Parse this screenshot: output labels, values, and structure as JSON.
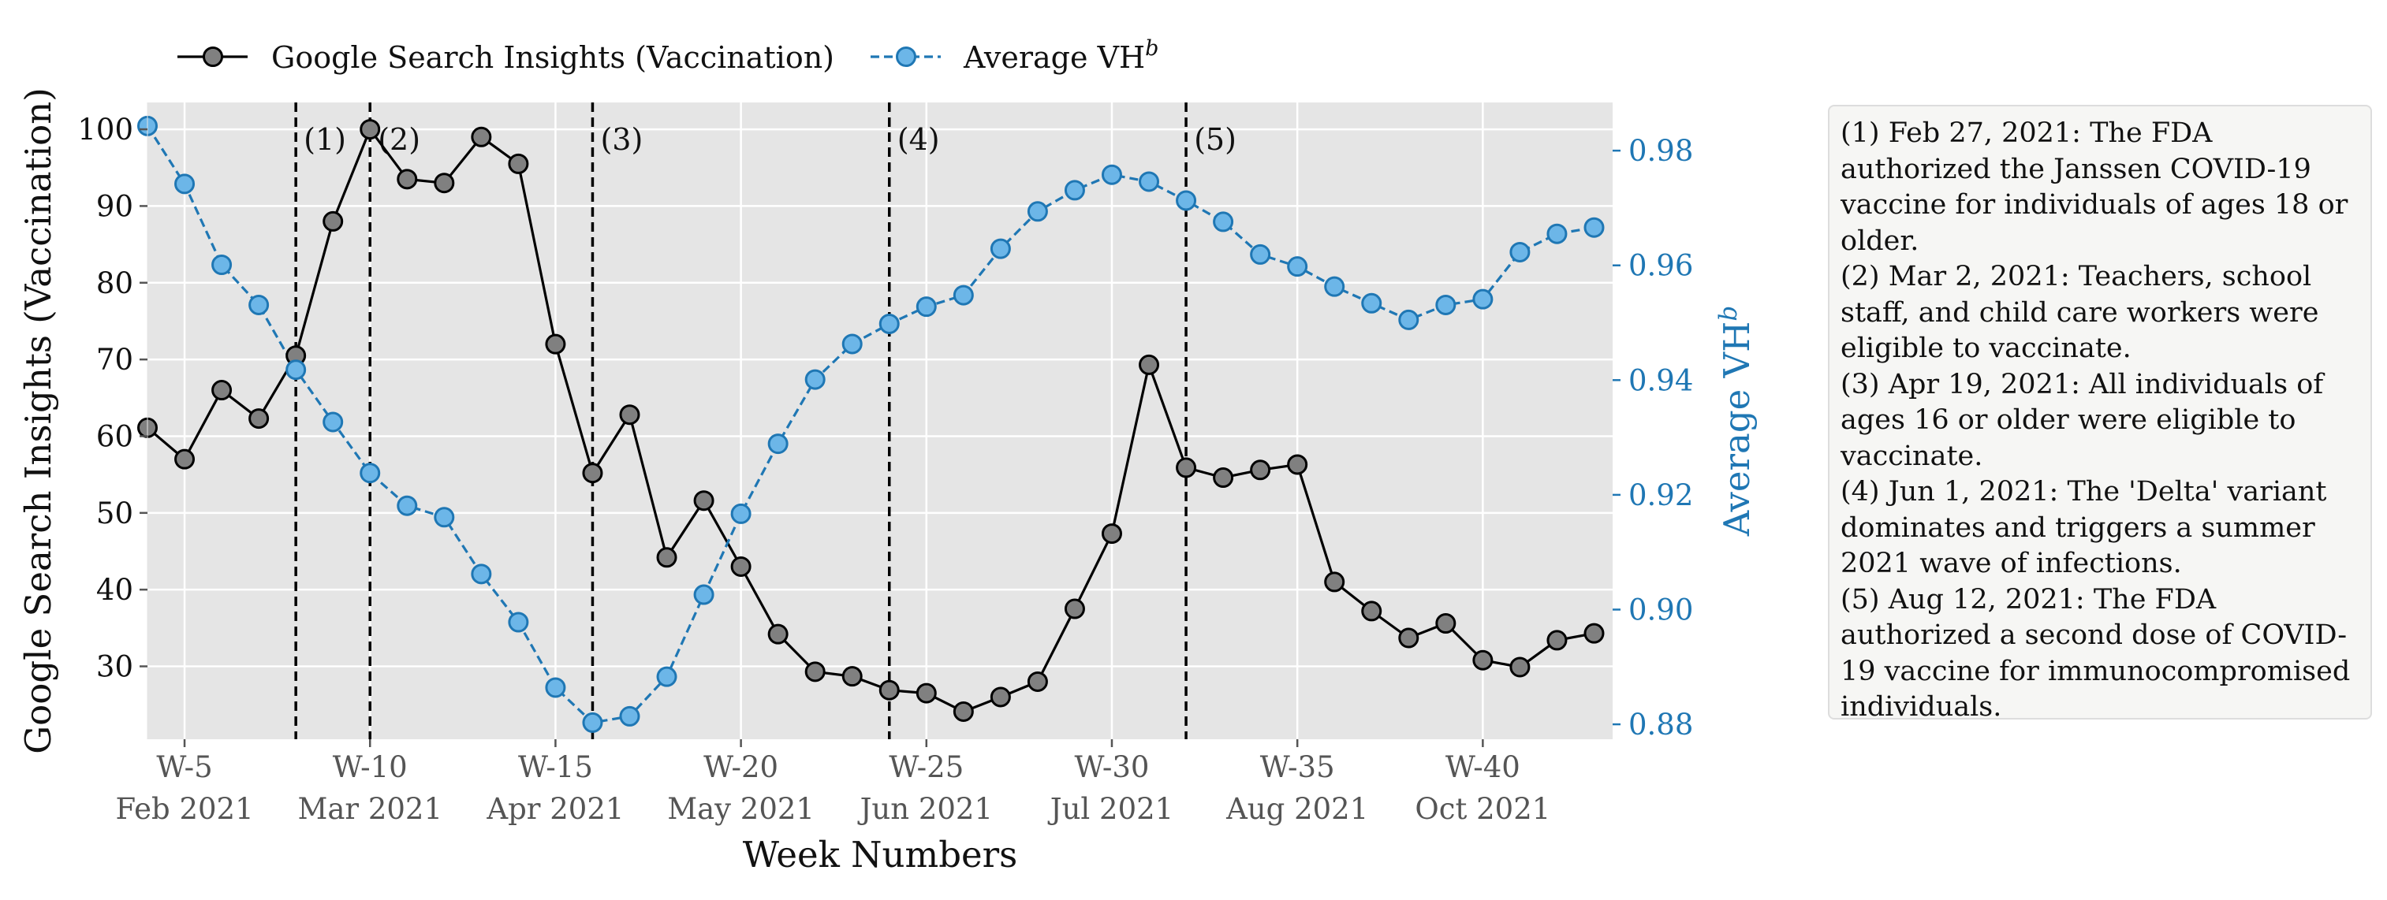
{
  "chart_data": {
    "type": "line",
    "xlabel": "Week Numbers",
    "ylabel_left": "Google Search Insights (Vaccination)",
    "ylabel_right": "Average VH",
    "ylabel_right_superscript": "b",
    "xlim": [
      4,
      43.5
    ],
    "ylim_left": [
      20.5,
      103.5
    ],
    "ylim_right": [
      0.8774,
      0.9884
    ],
    "grid": true,
    "legend_placement": "top-left, outside plot",
    "x_ticks": [
      {
        "week": 5,
        "label": "W-5",
        "sublabel": "Feb 2021"
      },
      {
        "week": 10,
        "label": "W-10",
        "sublabel": "Mar 2021"
      },
      {
        "week": 15,
        "label": "W-15",
        "sublabel": "Apr 2021"
      },
      {
        "week": 20,
        "label": "W-20",
        "sublabel": "May 2021"
      },
      {
        "week": 25,
        "label": "W-25",
        "sublabel": "Jun 2021"
      },
      {
        "week": 30,
        "label": "W-30",
        "sublabel": "Jul 2021"
      },
      {
        "week": 35,
        "label": "W-35",
        "sublabel": "Aug 2021"
      },
      {
        "week": 40,
        "label": "W-40",
        "sublabel": "Oct 2021"
      }
    ],
    "y_ticks_left": [
      30,
      40,
      50,
      60,
      70,
      80,
      90,
      100
    ],
    "y_ticks_right": [
      0.88,
      0.9,
      0.92,
      0.94,
      0.96,
      0.98
    ],
    "y_ticks_right_labels": [
      "0.88",
      "0.90",
      "0.92",
      "0.94",
      "0.96",
      "0.98"
    ],
    "series": [
      {
        "name": "Google Search Insights (Vaccination)",
        "axis": "left",
        "color": "#000000",
        "marker_color": "#808080",
        "line_style": "solid",
        "x": [
          4,
          5,
          6,
          7,
          8,
          9,
          10,
          11,
          12,
          13,
          14,
          15,
          16,
          17,
          18,
          19,
          20,
          21,
          22,
          23,
          24,
          25,
          26,
          27,
          28,
          29,
          30,
          31,
          32,
          33,
          34,
          35,
          36,
          37,
          38,
          39,
          40,
          41,
          42,
          43
        ],
        "values": [
          61.1,
          57,
          66,
          62.3,
          70.5,
          88,
          100,
          93.5,
          93,
          99,
          95.5,
          72,
          55.2,
          62.8,
          44.2,
          51.6,
          43,
          34.2,
          29.3,
          28.7,
          26.9,
          26.5,
          24.1,
          26,
          28,
          37.5,
          47.3,
          69.3,
          55.9,
          54.6,
          55.6,
          56.3,
          41,
          37.2,
          33.7,
          35.6,
          30.8,
          29.9,
          33.4,
          34.3
        ]
      },
      {
        "name": "Average VH",
        "name_superscript": "b",
        "axis": "right",
        "color": "#1f77b4",
        "marker_color": "#6cb6e8",
        "line_style": "dashed",
        "x": [
          4,
          5,
          6,
          7,
          8,
          9,
          10,
          11,
          12,
          13,
          14,
          15,
          16,
          17,
          18,
          19,
          20,
          21,
          22,
          23,
          24,
          25,
          26,
          27,
          28,
          29,
          30,
          31,
          32,
          33,
          34,
          35,
          36,
          37,
          38,
          39,
          40,
          41,
          42,
          43
        ],
        "values": [
          0.9843,
          0.9742,
          0.9601,
          0.9531,
          0.9418,
          0.9327,
          0.9238,
          0.9181,
          0.9161,
          0.9062,
          0.8978,
          0.8864,
          0.8803,
          0.8814,
          0.8883,
          0.9026,
          0.9167,
          0.9289,
          0.9401,
          0.9463,
          0.9498,
          0.9528,
          0.9548,
          0.9629,
          0.9694,
          0.9731,
          0.9758,
          0.9746,
          0.9713,
          0.9676,
          0.9619,
          0.9598,
          0.9563,
          0.9534,
          0.9505,
          0.9531,
          0.9541,
          0.9623,
          0.9655,
          0.9666
        ]
      }
    ],
    "vlines": [
      {
        "x": 8,
        "label": "(1)"
      },
      {
        "x": 10,
        "label": "(2)"
      },
      {
        "x": 16,
        "label": "(3)"
      },
      {
        "x": 24,
        "label": "(4)"
      },
      {
        "x": 32,
        "label": "(5)"
      }
    ]
  },
  "legend": {
    "items": [
      {
        "label": "Google Search Insights (Vaccination)",
        "superscript": ""
      },
      {
        "label": "Average VH",
        "superscript": "b"
      }
    ]
  },
  "annotations": {
    "notes": [
      "(1) Feb 27, 2021: The FDA authorized the Janssen COVID-19 vaccine for individuals of ages 18 or older.",
      "(2) Mar 2, 2021: Teachers, school staff, and child care workers were eligible to vaccinate.",
      "(3) Apr 19, 2021: All individuals of ages 16 or older were eligible to vaccinate.",
      "(4) Jun 1, 2021: The 'Delta' variant dominates and triggers a summer 2021 wave of infections.",
      "(5) Aug 12, 2021: The FDA authorized a second dose of COVID-19 vaccine for immunocompromised individuals."
    ]
  }
}
